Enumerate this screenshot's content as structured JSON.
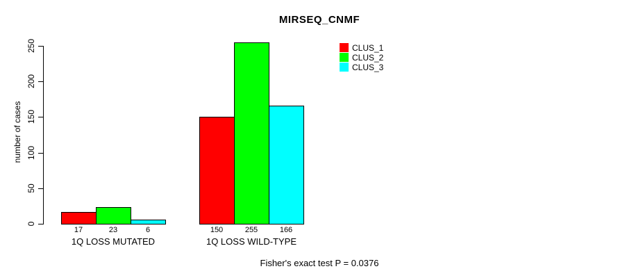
{
  "chart_data": {
    "type": "bar",
    "title": "MIRSEQ_CNMF",
    "xlabel": "",
    "ylabel": "number of cases",
    "ylim": [
      0,
      255
    ],
    "yticks": [
      0,
      50,
      100,
      150,
      200,
      250
    ],
    "grid": false,
    "legend_position": "top-right",
    "categories": [
      "1Q LOSS MUTATED",
      "1Q LOSS WILD-TYPE"
    ],
    "series": [
      {
        "name": "CLUS_1",
        "color": "#FF0000",
        "values": [
          17,
          150
        ]
      },
      {
        "name": "CLUS_2",
        "color": "#00FF00",
        "values": [
          23,
          255
        ]
      },
      {
        "name": "CLUS_3",
        "color": "#00FFFF",
        "values": [
          6,
          166
        ]
      }
    ],
    "bar_value_labels": [
      [
        "17",
        "23",
        "6"
      ],
      [
        "150",
        "255",
        "166"
      ]
    ],
    "footer": "Fisher's exact test P = 0.0376"
  }
}
